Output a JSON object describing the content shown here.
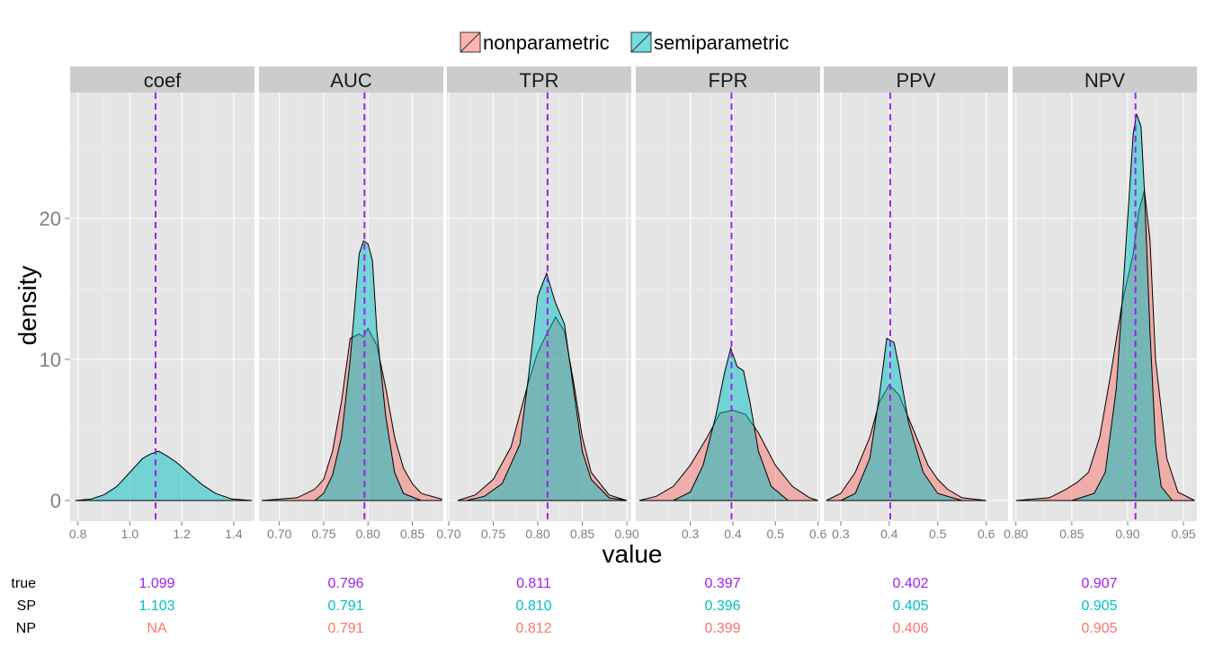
{
  "chart_data": {
    "type": "area",
    "subtype": "faceted density",
    "xlabel": "value",
    "ylabel": "density",
    "ylim": [
      0,
      30
    ],
    "y_ticks": [
      0,
      10,
      20
    ],
    "legend": {
      "placement": "top",
      "entries": [
        {
          "name": "nonparametric",
          "color": "#F8766D"
        },
        {
          "name": "semiparametric",
          "color": "#00BFC4"
        }
      ]
    },
    "reference_line_color": "#A020F0",
    "colors": {
      "nonparametric": "#F8766D",
      "semiparametric": "#00BFC4",
      "true": "#A020F0"
    },
    "grid": true,
    "facets": [
      {
        "title": "coef",
        "xlim": [
          0.77,
          1.48
        ],
        "x_ticks": [
          {
            "v": 0.8,
            "label": "0.8"
          },
          {
            "v": 1.0,
            "label": "1.0"
          },
          {
            "v": 1.2,
            "label": "1.2"
          },
          {
            "v": 1.4,
            "label": "1.4"
          }
        ],
        "true_value": 1.099,
        "series": [
          {
            "name": "semiparametric",
            "points": [
              [
                0.79,
                0
              ],
              [
                0.85,
                0.1
              ],
              [
                0.9,
                0.4
              ],
              [
                0.95,
                1.0
              ],
              [
                1.0,
                2.0
              ],
              [
                1.05,
                3.0
              ],
              [
                1.08,
                3.3
              ],
              [
                1.11,
                3.5
              ],
              [
                1.14,
                3.2
              ],
              [
                1.18,
                2.7
              ],
              [
                1.23,
                1.9
              ],
              [
                1.28,
                1.1
              ],
              [
                1.33,
                0.5
              ],
              [
                1.39,
                0.12
              ],
              [
                1.47,
                0
              ]
            ]
          }
        ]
      },
      {
        "title": "AUC",
        "xlim": [
          0.677,
          0.885
        ],
        "x_ticks": [
          {
            "v": 0.7,
            "label": "0.70"
          },
          {
            "v": 0.75,
            "label": "0.75"
          },
          {
            "v": 0.8,
            "label": "0.80"
          },
          {
            "v": 0.85,
            "label": "0.85"
          }
        ],
        "true_value": 0.796,
        "series": [
          {
            "name": "nonparametric",
            "points": [
              [
                0.68,
                0
              ],
              [
                0.72,
                0.2
              ],
              [
                0.74,
                0.8
              ],
              [
                0.75,
                1.5
              ],
              [
                0.76,
                3.5
              ],
              [
                0.77,
                7.0
              ],
              [
                0.78,
                11.5
              ],
              [
                0.79,
                11.8
              ],
              [
                0.795,
                11.6
              ],
              [
                0.8,
                12.2
              ],
              [
                0.81,
                11.0
              ],
              [
                0.82,
                8.0
              ],
              [
                0.83,
                4.5
              ],
              [
                0.84,
                2.3
              ],
              [
                0.85,
                1.2
              ],
              [
                0.86,
                0.5
              ],
              [
                0.883,
                0.1
              ]
            ]
          },
          {
            "name": "semiparametric",
            "points": [
              [
                0.74,
                0
              ],
              [
                0.75,
                0.5
              ],
              [
                0.76,
                1.8
              ],
              [
                0.77,
                4.5
              ],
              [
                0.78,
                10.0
              ],
              [
                0.79,
                17.5
              ],
              [
                0.795,
                18.4
              ],
              [
                0.8,
                18.2
              ],
              [
                0.805,
                17.0
              ],
              [
                0.81,
                12.0
              ],
              [
                0.82,
                6.0
              ],
              [
                0.83,
                2.0
              ],
              [
                0.84,
                0.5
              ],
              [
                0.86,
                0
              ]
            ]
          }
        ]
      },
      {
        "title": "TPR",
        "xlim": [
          0.698,
          0.905
        ],
        "x_ticks": [
          {
            "v": 0.7,
            "label": "0.70"
          },
          {
            "v": 0.75,
            "label": "0.75"
          },
          {
            "v": 0.8,
            "label": "0.80"
          },
          {
            "v": 0.85,
            "label": "0.85"
          },
          {
            "v": 0.9,
            "label": "0.90"
          }
        ],
        "true_value": 0.811,
        "series": [
          {
            "name": "nonparametric",
            "points": [
              [
                0.71,
                0
              ],
              [
                0.73,
                0.4
              ],
              [
                0.75,
                1.5
              ],
              [
                0.77,
                3.8
              ],
              [
                0.79,
                8.5
              ],
              [
                0.8,
                10.5
              ],
              [
                0.81,
                11.8
              ],
              [
                0.82,
                13.0
              ],
              [
                0.83,
                12.0
              ],
              [
                0.84,
                8.5
              ],
              [
                0.85,
                4.5
              ],
              [
                0.86,
                2.0
              ],
              [
                0.88,
                0.4
              ],
              [
                0.9,
                0
              ]
            ]
          },
          {
            "name": "semiparametric",
            "points": [
              [
                0.72,
                0
              ],
              [
                0.74,
                0.3
              ],
              [
                0.76,
                1.2
              ],
              [
                0.78,
                4.0
              ],
              [
                0.79,
                9.0
              ],
              [
                0.8,
                14.5
              ],
              [
                0.81,
                16.1
              ],
              [
                0.815,
                15.0
              ],
              [
                0.82,
                14.0
              ],
              [
                0.83,
                12.5
              ],
              [
                0.84,
                8.0
              ],
              [
                0.85,
                3.5
              ],
              [
                0.86,
                1.5
              ],
              [
                0.88,
                0.2
              ],
              [
                0.9,
                0
              ]
            ]
          }
        ]
      },
      {
        "title": "FPR",
        "xlim": [
          0.172,
          0.605
        ],
        "x_ticks": [
          {
            "v": 0.3,
            "label": "0.3"
          },
          {
            "v": 0.4,
            "label": "0.4"
          },
          {
            "v": 0.5,
            "label": "0.5"
          },
          {
            "v": 0.6,
            "label": "0.6"
          }
        ],
        "true_value": 0.397,
        "series": [
          {
            "name": "nonparametric",
            "points": [
              [
                0.18,
                0
              ],
              [
                0.22,
                0.3
              ],
              [
                0.26,
                1.0
              ],
              [
                0.3,
                2.5
              ],
              [
                0.34,
                4.5
              ],
              [
                0.37,
                6.2
              ],
              [
                0.4,
                6.4
              ],
              [
                0.43,
                6.1
              ],
              [
                0.46,
                4.8
              ],
              [
                0.5,
                2.5
              ],
              [
                0.54,
                1.0
              ],
              [
                0.58,
                0.2
              ],
              [
                0.6,
                0
              ]
            ]
          },
          {
            "name": "semiparametric",
            "points": [
              [
                0.26,
                0
              ],
              [
                0.3,
                0.6
              ],
              [
                0.33,
                2.5
              ],
              [
                0.36,
                6.0
              ],
              [
                0.38,
                9.0
              ],
              [
                0.395,
                10.8
              ],
              [
                0.41,
                9.5
              ],
              [
                0.425,
                9.2
              ],
              [
                0.44,
                7.0
              ],
              [
                0.46,
                3.5
              ],
              [
                0.49,
                1.0
              ],
              [
                0.53,
                0
              ]
            ]
          }
        ]
      },
      {
        "title": "PPV",
        "xlim": [
          0.265,
          0.645
        ],
        "x_ticks": [
          {
            "v": 0.3,
            "label": "0.3"
          },
          {
            "v": 0.4,
            "label": "0.4"
          },
          {
            "v": 0.5,
            "label": "0.5"
          },
          {
            "v": 0.6,
            "label": "0.6"
          }
        ],
        "true_value": 0.402,
        "series": [
          {
            "name": "nonparametric",
            "points": [
              [
                0.27,
                0
              ],
              [
                0.3,
                0.5
              ],
              [
                0.33,
                2.0
              ],
              [
                0.36,
                4.5
              ],
              [
                0.38,
                7.0
              ],
              [
                0.4,
                8.2
              ],
              [
                0.42,
                7.5
              ],
              [
                0.45,
                5.0
              ],
              [
                0.48,
                2.5
              ],
              [
                0.5,
                1.5
              ],
              [
                0.52,
                0.8
              ],
              [
                0.55,
                0.2
              ],
              [
                0.6,
                0
              ]
            ]
          },
          {
            "name": "semiparametric",
            "points": [
              [
                0.3,
                0
              ],
              [
                0.33,
                0.5
              ],
              [
                0.36,
                3.0
              ],
              [
                0.38,
                7.5
              ],
              [
                0.395,
                11.5
              ],
              [
                0.41,
                11.2
              ],
              [
                0.42,
                9.5
              ],
              [
                0.44,
                5.5
              ],
              [
                0.47,
                2.0
              ],
              [
                0.5,
                0.5
              ],
              [
                0.55,
                0
              ]
            ]
          }
        ]
      },
      {
        "title": "NPV",
        "xlim": [
          0.797,
          0.962
        ],
        "x_ticks": [
          {
            "v": 0.8,
            "label": "0.80"
          },
          {
            "v": 0.85,
            "label": "0.85"
          },
          {
            "v": 0.9,
            "label": "0.90"
          },
          {
            "v": 0.95,
            "label": "0.95"
          }
        ],
        "true_value": 0.907,
        "series": [
          {
            "name": "nonparametric",
            "points": [
              [
                0.8,
                0
              ],
              [
                0.83,
                0.2
              ],
              [
                0.845,
                0.8
              ],
              [
                0.855,
                1.3
              ],
              [
                0.865,
                2.0
              ],
              [
                0.875,
                4.5
              ],
              [
                0.885,
                9.0
              ],
              [
                0.895,
                14.0
              ],
              [
                0.905,
                17.5
              ],
              [
                0.91,
                20.5
              ],
              [
                0.915,
                22.0
              ],
              [
                0.92,
                18.5
              ],
              [
                0.925,
                10.0
              ],
              [
                0.935,
                3.0
              ],
              [
                0.945,
                0.6
              ],
              [
                0.96,
                0
              ]
            ]
          },
          {
            "name": "semiparametric",
            "points": [
              [
                0.85,
                0
              ],
              [
                0.87,
                0.5
              ],
              [
                0.88,
                2.0
              ],
              [
                0.89,
                8.0
              ],
              [
                0.9,
                20.0
              ],
              [
                0.905,
                26.0
              ],
              [
                0.908,
                27.4
              ],
              [
                0.912,
                26.5
              ],
              [
                0.915,
                22.0
              ],
              [
                0.92,
                12.0
              ],
              [
                0.925,
                4.0
              ],
              [
                0.93,
                1.0
              ],
              [
                0.94,
                0
              ]
            ]
          }
        ]
      }
    ]
  },
  "summary_table": {
    "row_labels": [
      "true",
      "SP",
      "NP"
    ],
    "rows": [
      [
        "1.099",
        "0.796",
        "0.811",
        "0.397",
        "0.402",
        "0.907"
      ],
      [
        "1.103",
        "0.791",
        "0.810",
        "0.396",
        "0.405",
        "0.905"
      ],
      [
        "NA",
        "0.791",
        "0.812",
        "0.399",
        "0.406",
        "0.905"
      ]
    ],
    "row_colors": [
      "#A020F0",
      "#00BFC4",
      "#F8766D"
    ]
  }
}
